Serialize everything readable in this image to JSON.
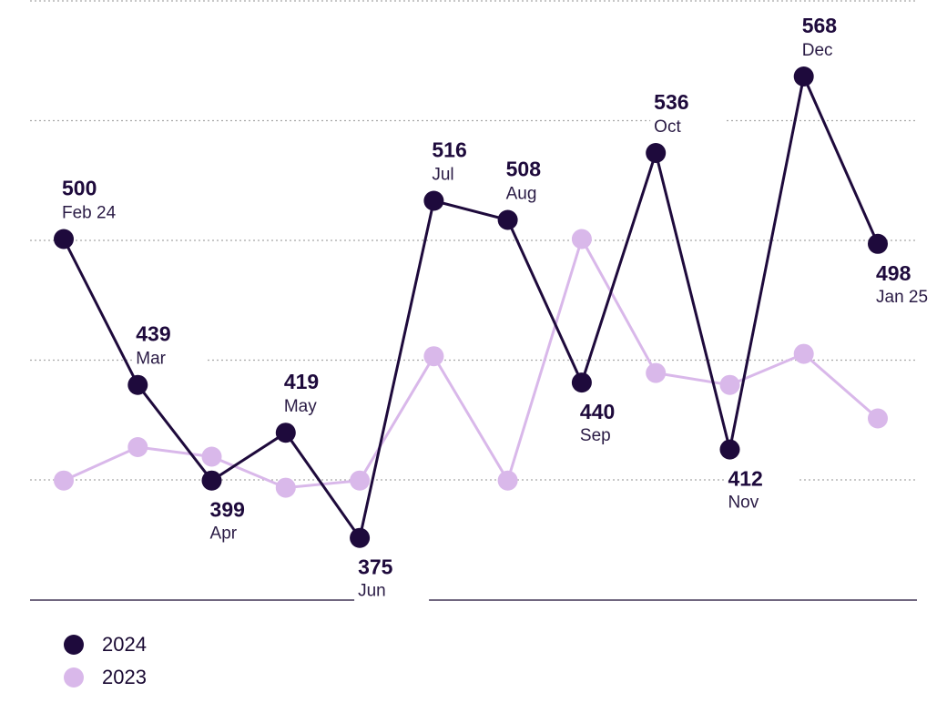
{
  "chart_data": {
    "type": "line",
    "categories": [
      "Feb 24",
      "Mar",
      "Apr",
      "May",
      "Jun",
      "Jul",
      "Aug",
      "Sep",
      "Oct",
      "Nov",
      "Dec",
      "Jan 25"
    ],
    "series": [
      {
        "name": "2024",
        "color": "#1e0a3c",
        "values": [
          500,
          439,
          399,
          419,
          375,
          516,
          508,
          440,
          536,
          412,
          568,
          498
        ],
        "labels": [
          "500",
          "439",
          "399",
          "419",
          "375",
          "516",
          "508",
          "440",
          "536",
          "412",
          "568",
          "498"
        ],
        "label_position": [
          "above",
          "above",
          "below",
          "above",
          "below",
          "above",
          "above",
          "below",
          "above",
          "below",
          "above",
          "below"
        ]
      },
      {
        "name": "2023",
        "color": "#d9b8ea",
        "values": [
          399,
          413,
          409,
          396,
          399,
          451,
          399,
          500,
          444,
          439,
          452,
          425
        ]
      }
    ],
    "ylim": [
      349,
      600
    ],
    "grid": true,
    "legend": "bottom-left",
    "title": "",
    "xlabel": "",
    "ylabel": ""
  }
}
